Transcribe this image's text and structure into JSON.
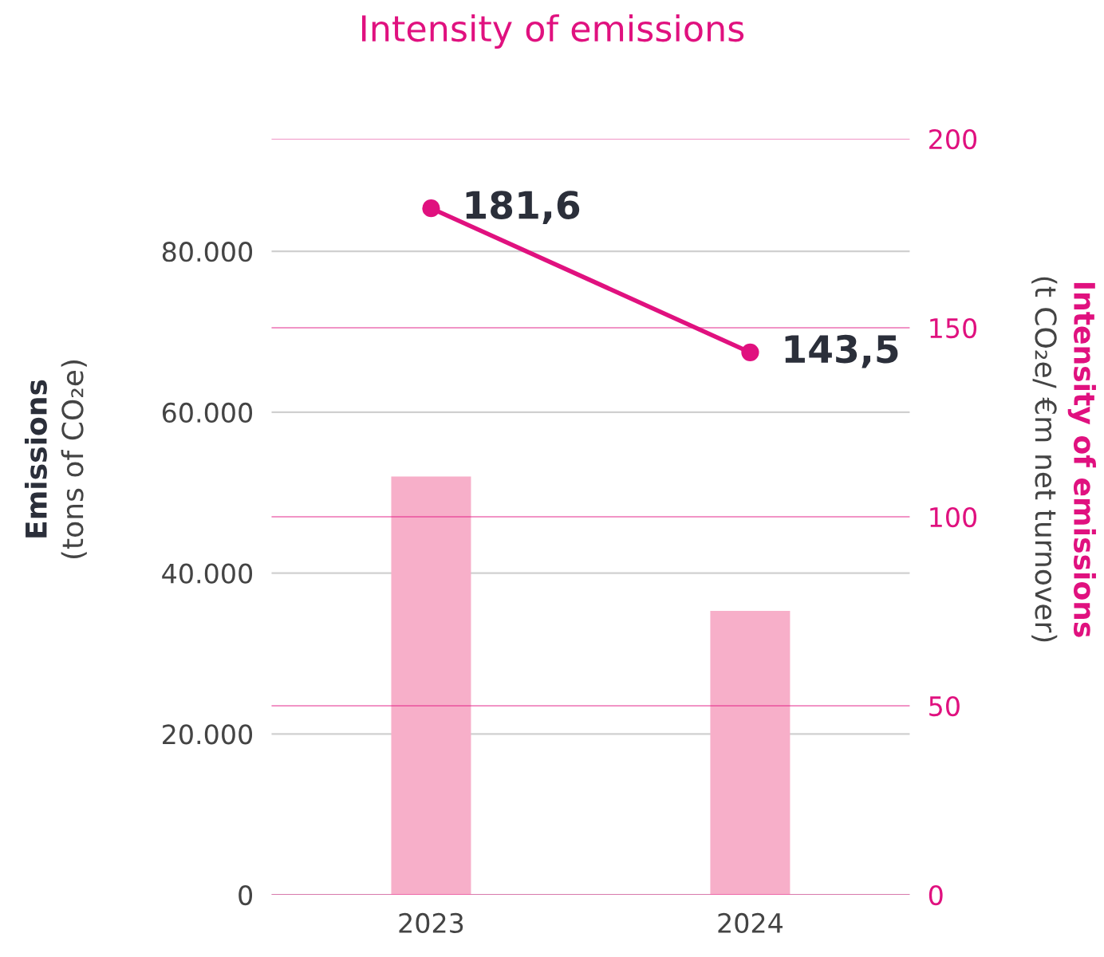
{
  "chart_data": {
    "type": "bar",
    "title": "Intensity of emissions",
    "categories": [
      "2023",
      "2024"
    ],
    "ylabel": "Emissions\n(tons of CO₂e)",
    "y2label": "Intensity of emissions\n(t CO₂e/ €m net turnover)",
    "series": [
      {
        "color": "#f7afc9",
        "values": [
          52000,
          35300
        ]
      },
      {
        "type": "line",
        "axis": "y2",
        "color": "#e0117f",
        "values": [
          181.6,
          143.5
        ],
        "value_labels": [
          "181,6",
          "143,5"
        ]
      }
    ],
    "ylim": [
      0,
      94000
    ],
    "yticks": [
      0,
      {
        "value": 20000,
        "label": "20.000"
      },
      {
        "value": 40000,
        "label": "40.000"
      },
      {
        "value": 60000,
        "label": "60.000"
      },
      {
        "value": 80000,
        "label": "80.000"
      }
    ],
    "y2lim": [
      0,
      200
    ],
    "y2ticks": [
      0,
      50,
      100,
      150,
      200
    ],
    "grid": "y",
    "marker": "circle",
    "line_style": "solid",
    "legend": false
  }
}
